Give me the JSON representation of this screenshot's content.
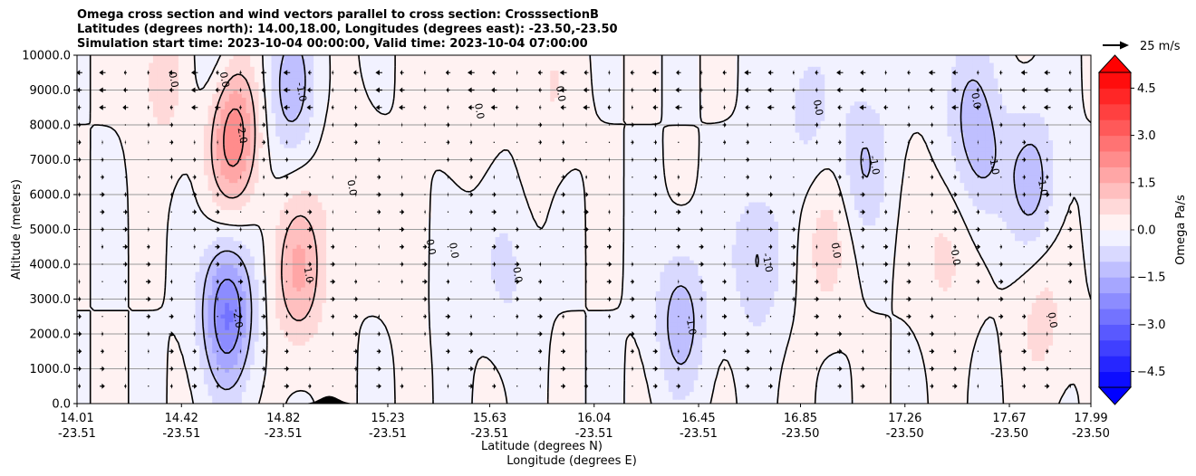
{
  "chart_data": {
    "type": "heatmap",
    "title_lines": [
      "Omega cross section and wind vectors parallel to cross section: CrosssectionB",
      "Latitudes (degrees north): 14.00,18.00, Longitudes (degrees east): -23.50,-23.50",
      "Simulation start time: 2023-10-04 00:00:00, Valid time: 2023-10-04 07:00:00"
    ],
    "xlabel_line1": "Latitude (degrees N)",
    "xlabel_line2": "Longitude (degrees E)",
    "ylabel": "Altitude (meters)",
    "ylim": [
      0,
      10000
    ],
    "y_ticks": [
      0,
      1000,
      2000,
      3000,
      4000,
      5000,
      6000,
      7000,
      8000,
      9000,
      10000
    ],
    "y_tick_labels": [
      "0.0",
      "1000.0",
      "2000.0",
      "3000.0",
      "4000.0",
      "5000.0",
      "6000.0",
      "7000.0",
      "8000.0",
      "9000.0",
      "10000.0"
    ],
    "xlim": [
      14.01,
      17.99
    ],
    "x_ticks": [
      {
        "lat": 14.01,
        "lat_label": "14.01",
        "lon_label": "-23.51"
      },
      {
        "lat": 14.42,
        "lat_label": "14.42",
        "lon_label": "-23.51"
      },
      {
        "lat": 14.82,
        "lat_label": "14.82",
        "lon_label": "-23.51"
      },
      {
        "lat": 15.23,
        "lat_label": "15.23",
        "lon_label": "-23.51"
      },
      {
        "lat": 15.63,
        "lat_label": "15.63",
        "lon_label": "-23.51"
      },
      {
        "lat": 16.04,
        "lat_label": "16.04",
        "lon_label": "-23.51"
      },
      {
        "lat": 16.45,
        "lat_label": "16.45",
        "lon_label": "-23.51"
      },
      {
        "lat": 16.85,
        "lat_label": "16.85",
        "lon_label": "-23.50"
      },
      {
        "lat": 17.26,
        "lat_label": "17.26",
        "lon_label": "-23.50"
      },
      {
        "lat": 17.67,
        "lat_label": "17.67",
        "lon_label": "-23.50"
      },
      {
        "lat": 17.99,
        "lat_label": "17.99",
        "lon_label": "-23.50"
      }
    ],
    "grid": "horizontal",
    "colorbar": {
      "label": "Omega Pa/s",
      "range": [
        -5,
        5
      ],
      "levels": [
        -5.0,
        -4.5,
        -4.0,
        -3.5,
        -3.0,
        -2.5,
        -2.0,
        -1.5,
        -1.0,
        -0.5,
        0.0,
        0.5,
        1.0,
        1.5,
        2.0,
        2.5,
        3.0,
        3.5,
        4.0,
        4.5,
        5.0
      ],
      "ticks": [
        -4.5,
        -3.0,
        -1.5,
        0.0,
        1.5,
        3.0,
        4.5
      ],
      "tick_labels": [
        "−4.5",
        "−3.0",
        "−1.5",
        "0.0",
        "1.5",
        "3.0",
        "4.5"
      ],
      "extend": "both"
    },
    "vector_key": {
      "label": "25 m/s"
    },
    "features": [
      {
        "kind": "max",
        "lat": 14.62,
        "alt": 7800,
        "value": 2.6
      },
      {
        "kind": "max",
        "lat": 14.88,
        "alt": 3800,
        "value": 1.6
      },
      {
        "kind": "max",
        "lat": 14.35,
        "alt": 9400,
        "value": 0.8
      },
      {
        "kind": "max",
        "lat": 15.36,
        "alt": 4600,
        "value": 0.6
      },
      {
        "kind": "max",
        "lat": 15.55,
        "alt": 8500,
        "value": 0.5
      },
      {
        "kind": "max",
        "lat": 15.87,
        "alt": 9000,
        "value": 0.5
      },
      {
        "kind": "max",
        "lat": 16.95,
        "alt": 4500,
        "value": 0.7
      },
      {
        "kind": "max",
        "lat": 17.42,
        "alt": 4300,
        "value": 0.7
      },
      {
        "kind": "max",
        "lat": 17.8,
        "alt": 2500,
        "value": 0.7
      },
      {
        "kind": "max",
        "lat": 15.05,
        "alt": 6300,
        "value": 0.5
      },
      {
        "kind": "min",
        "lat": 14.6,
        "alt": 2600,
        "value": -2.6
      },
      {
        "kind": "min",
        "lat": 14.85,
        "alt": 9100,
        "value": -1.3
      },
      {
        "kind": "min",
        "lat": 14.55,
        "alt": 9400,
        "value": -0.7
      },
      {
        "kind": "min",
        "lat": 16.38,
        "alt": 2400,
        "value": -1.3
      },
      {
        "kind": "min",
        "lat": 16.68,
        "alt": 4200,
        "value": -1.1
      },
      {
        "kind": "min",
        "lat": 17.1,
        "alt": 7000,
        "value": -1.0
      },
      {
        "kind": "min",
        "lat": 17.57,
        "alt": 7000,
        "value": -1.0
      },
      {
        "kind": "min",
        "lat": 17.76,
        "alt": 6400,
        "value": -1.2
      },
      {
        "kind": "min",
        "lat": 15.45,
        "alt": 4500,
        "value": -0.7
      },
      {
        "kind": "min",
        "lat": 15.7,
        "alt": 3800,
        "value": -0.6
      },
      {
        "kind": "min",
        "lat": 17.5,
        "alt": 8800,
        "value": -0.8
      },
      {
        "kind": "min",
        "lat": 16.88,
        "alt": 8600,
        "value": -0.7
      }
    ],
    "contour_labels": [
      "0.0",
      "1.0",
      "2.0",
      "-1.0",
      "-2.0"
    ],
    "terrain": {
      "peak_lat": 15.0,
      "peak_alt": 220
    }
  }
}
